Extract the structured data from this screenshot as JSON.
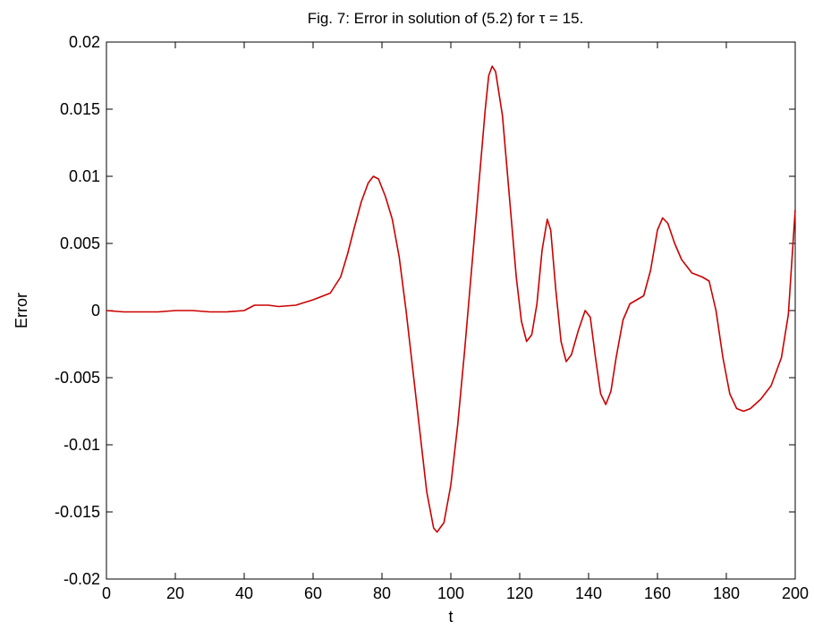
{
  "chart_data": {
    "type": "line",
    "title": "Fig. 7: Error in solution of (5.2) for τ = 15.",
    "xlabel": "t",
    "ylabel": "Error",
    "xlim": [
      0,
      200
    ],
    "ylim": [
      -0.02,
      0.02
    ],
    "x_ticks": [
      0,
      20,
      40,
      60,
      80,
      100,
      120,
      140,
      160,
      180,
      200
    ],
    "x_tick_labels": [
      "0",
      "20",
      "40",
      "60",
      "80",
      "100",
      "120",
      "140",
      "160",
      "180",
      "200"
    ],
    "y_ticks": [
      -0.02,
      -0.015,
      -0.01,
      -0.005,
      0,
      0.005,
      0.01,
      0.015,
      0.02
    ],
    "y_tick_labels": [
      "-0.02",
      "-0.015",
      "-0.01",
      "-0.005",
      "0",
      "0.005",
      "0.01",
      "0.015",
      "0.02"
    ],
    "grid": false,
    "series": [
      {
        "color": "#cc0000",
        "points": [
          [
            0,
            0.0
          ],
          [
            5,
            -0.0001
          ],
          [
            10,
            -0.0001
          ],
          [
            15,
            -0.0001
          ],
          [
            20,
            0.0
          ],
          [
            25,
            0.0
          ],
          [
            30,
            -0.0001
          ],
          [
            35,
            -0.0001
          ],
          [
            40,
            0.0
          ],
          [
            43,
            0.0004
          ],
          [
            47,
            0.0004
          ],
          [
            50,
            0.0003
          ],
          [
            55,
            0.0004
          ],
          [
            60,
            0.0008
          ],
          [
            63,
            0.0011
          ],
          [
            65,
            0.0013
          ],
          [
            68,
            0.0025
          ],
          [
            70,
            0.0042
          ],
          [
            72,
            0.0062
          ],
          [
            74,
            0.0081
          ],
          [
            76,
            0.0095
          ],
          [
            77.5,
            0.01
          ],
          [
            79,
            0.0098
          ],
          [
            81,
            0.0085
          ],
          [
            83,
            0.0068
          ],
          [
            85,
            0.004
          ],
          [
            87,
            0.0
          ],
          [
            89,
            -0.0045
          ],
          [
            91,
            -0.009
          ],
          [
            93,
            -0.0135
          ],
          [
            95,
            -0.0162
          ],
          [
            96,
            -0.0165
          ],
          [
            98,
            -0.0158
          ],
          [
            100,
            -0.013
          ],
          [
            102,
            -0.0085
          ],
          [
            104,
            -0.003
          ],
          [
            106,
            0.003
          ],
          [
            108,
            0.009
          ],
          [
            110,
            0.015
          ],
          [
            111,
            0.0175
          ],
          [
            112,
            0.0182
          ],
          [
            113,
            0.0178
          ],
          [
            115,
            0.0145
          ],
          [
            117,
            0.0085
          ],
          [
            119,
            0.0025
          ],
          [
            120.5,
            -0.0008
          ],
          [
            122,
            -0.0023
          ],
          [
            123.5,
            -0.0018
          ],
          [
            125,
            0.0005
          ],
          [
            126.5,
            0.0045
          ],
          [
            128,
            0.0068
          ],
          [
            129,
            0.006
          ],
          [
            130.5,
            0.0015
          ],
          [
            132,
            -0.0023
          ],
          [
            133.5,
            -0.0038
          ],
          [
            135,
            -0.0033
          ],
          [
            137,
            -0.0015
          ],
          [
            139,
            0.0
          ],
          [
            140.5,
            -0.0005
          ],
          [
            142,
            -0.0035
          ],
          [
            143.5,
            -0.0062
          ],
          [
            145,
            -0.007
          ],
          [
            146.5,
            -0.006
          ],
          [
            148,
            -0.0035
          ],
          [
            150,
            -0.0007
          ],
          [
            152,
            0.0005
          ],
          [
            154,
            0.0008
          ],
          [
            156,
            0.0011
          ],
          [
            158,
            0.003
          ],
          [
            160,
            0.006
          ],
          [
            161.5,
            0.0069
          ],
          [
            163,
            0.0065
          ],
          [
            165,
            0.005
          ],
          [
            167,
            0.0038
          ],
          [
            170,
            0.0028
          ],
          [
            173,
            0.0025
          ],
          [
            175,
            0.0022
          ],
          [
            177,
            0.0
          ],
          [
            179,
            -0.0035
          ],
          [
            181,
            -0.0062
          ],
          [
            183,
            -0.0073
          ],
          [
            185,
            -0.0075
          ],
          [
            187,
            -0.0073
          ],
          [
            190,
            -0.0066
          ],
          [
            193,
            -0.0056
          ],
          [
            196,
            -0.0035
          ],
          [
            198,
            -0.0003
          ],
          [
            200,
            0.0075
          ]
        ]
      }
    ]
  }
}
